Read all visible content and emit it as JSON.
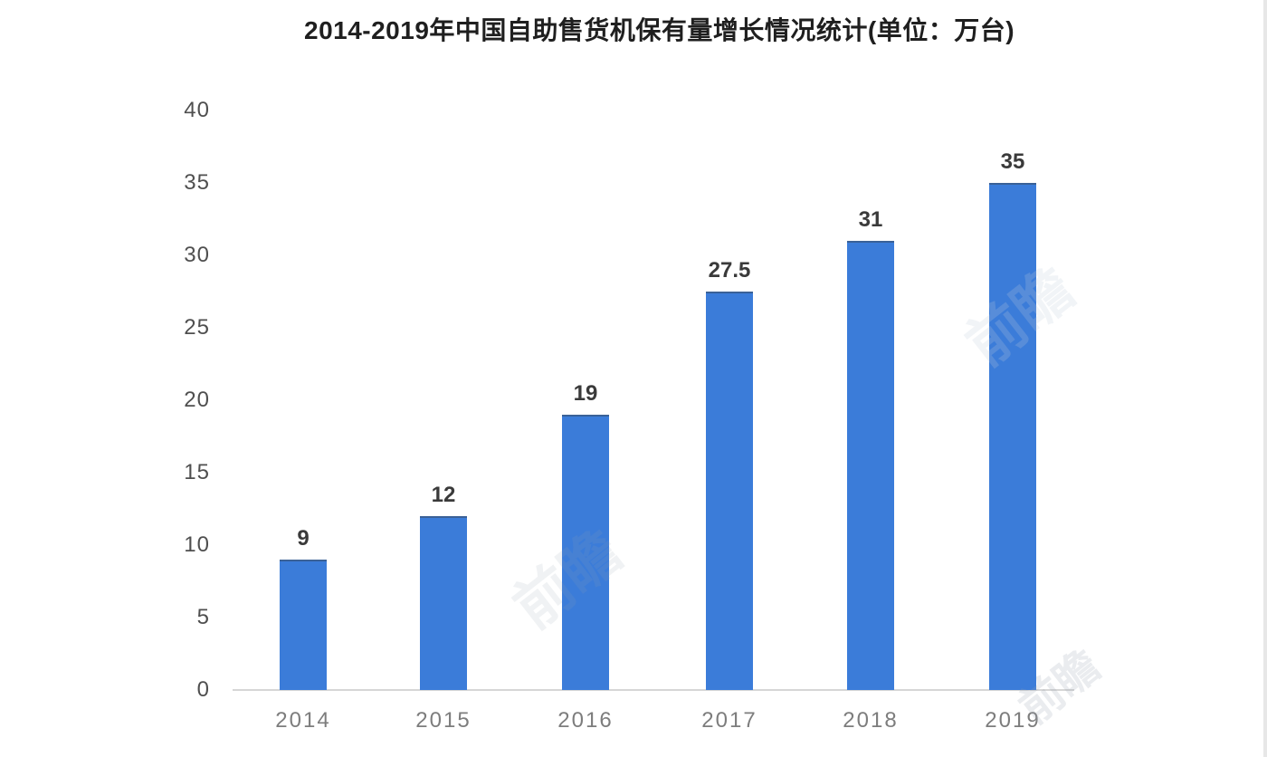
{
  "title": "2014-2019年中国自助售货机保有量增长情况统计(单位：万台)",
  "chart_data": {
    "type": "bar",
    "title": "2014-2019年中国自助售货机保有量增长情况统计(单位：万台)",
    "categories": [
      "2014",
      "2015",
      "2016",
      "2017",
      "2018",
      "2019"
    ],
    "values": [
      9,
      12,
      19,
      27.5,
      31,
      35
    ],
    "value_labels": [
      "9",
      "12",
      "19",
      "27.5",
      "31",
      "35"
    ],
    "xlabel": "",
    "ylabel": "",
    "ylim": [
      0,
      40
    ],
    "ytick_interval": 5,
    "yticks": [
      "40",
      "35",
      "30",
      "25",
      "20",
      "15",
      "10",
      "5",
      "0"
    ],
    "grid": false,
    "legend": false,
    "bar_color": "#3b7cd9",
    "axis_line_color": "#d6d6d6",
    "unit": "万台"
  },
  "watermark": {
    "text": "前瞻"
  }
}
